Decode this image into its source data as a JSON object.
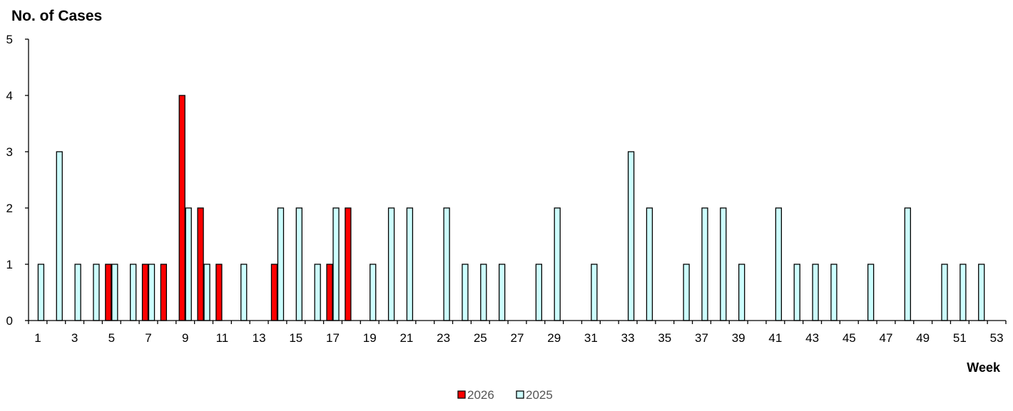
{
  "chart_data": {
    "type": "bar",
    "title": "",
    "ylabel": "No. of Cases",
    "xlabel": "Week",
    "ylim": [
      0,
      5
    ],
    "y_ticks": [
      0,
      1,
      2,
      3,
      4,
      5
    ],
    "x_tick_labels": [
      "1",
      "3",
      "5",
      "7",
      "9",
      "11",
      "13",
      "15",
      "17",
      "19",
      "21",
      "23",
      "25",
      "27",
      "29",
      "31",
      "33",
      "35",
      "37",
      "39",
      "41",
      "43",
      "45",
      "47",
      "49",
      "51",
      "53"
    ],
    "categories": [
      1,
      2,
      3,
      4,
      5,
      6,
      7,
      8,
      9,
      10,
      11,
      12,
      13,
      14,
      15,
      16,
      17,
      18,
      19,
      20,
      21,
      22,
      23,
      24,
      25,
      26,
      27,
      28,
      29,
      30,
      31,
      32,
      33,
      34,
      35,
      36,
      37,
      38,
      39,
      40,
      41,
      42,
      43,
      44,
      45,
      46,
      47,
      48,
      49,
      50,
      51,
      52,
      53
    ],
    "series": [
      {
        "name": "2026",
        "color": "#ff0000",
        "values": [
          0,
          0,
          0,
          0,
          1,
          0,
          1,
          1,
          4,
          2,
          1,
          0,
          0,
          1,
          0,
          0,
          1,
          2,
          0,
          0,
          0,
          0,
          0,
          0,
          0,
          0,
          0,
          0,
          0,
          0,
          0,
          0,
          0,
          0,
          0,
          0,
          0,
          0,
          0,
          0,
          0,
          0,
          0,
          0,
          0,
          0,
          0,
          0,
          0,
          0,
          0,
          0,
          0
        ]
      },
      {
        "name": "2025",
        "color": "#ccffff",
        "values": [
          1,
          3,
          1,
          1,
          1,
          1,
          1,
          0,
          2,
          1,
          0,
          1,
          0,
          2,
          2,
          1,
          2,
          0,
          1,
          2,
          2,
          0,
          2,
          1,
          1,
          1,
          0,
          1,
          2,
          0,
          1,
          0,
          3,
          2,
          0,
          1,
          2,
          2,
          1,
          0,
          2,
          1,
          1,
          1,
          0,
          1,
          0,
          2,
          0,
          1,
          1,
          1,
          0
        ]
      }
    ],
    "grid": false,
    "legend_position": "bottom-center"
  }
}
